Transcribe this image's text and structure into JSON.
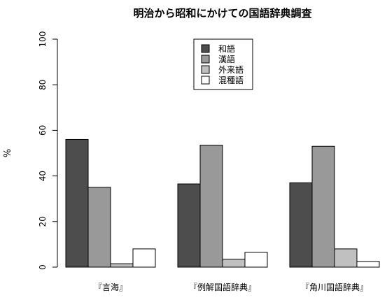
{
  "chart_data": {
    "type": "bar",
    "title": "明治から昭和にかけての国語辞典調査",
    "xlabel": "",
    "ylabel": "%",
    "ylim": [
      0,
      100
    ],
    "yticks": [
      "0",
      "20",
      "40",
      "60",
      "80",
      "100"
    ],
    "categories": [
      "『言海』",
      "『例解国語辞典』",
      "『角川国語辞典』"
    ],
    "series": [
      {
        "name": "和語",
        "color": "#4d4d4d",
        "values": [
          56,
          36.5,
          37
        ]
      },
      {
        "name": "漢語",
        "color": "#999999",
        "values": [
          35,
          53.5,
          53
        ]
      },
      {
        "name": "外来語",
        "color": "#c0c0c0",
        "values": [
          1.5,
          3.5,
          8
        ]
      },
      {
        "name": "混種語",
        "color": "#ffffff",
        "values": [
          8,
          6.5,
          2.5
        ]
      }
    ],
    "legend_position": "top-center",
    "grid": false
  }
}
